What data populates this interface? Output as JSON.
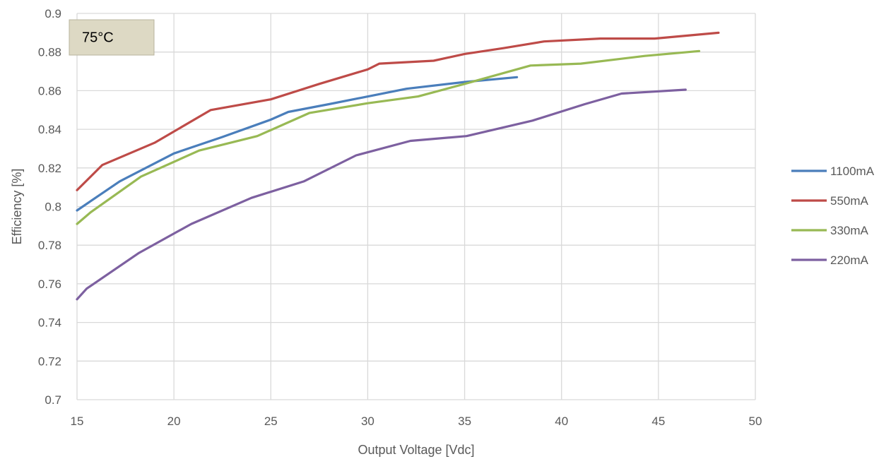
{
  "chart_data": {
    "type": "line",
    "title": "",
    "xlabel": "Output Voltage [Vdc]",
    "ylabel": "Efficiency [%]",
    "xlim": [
      15,
      50
    ],
    "ylim": [
      0.7,
      0.9
    ],
    "xticks": [
      15,
      20,
      25,
      30,
      35,
      40,
      45,
      50
    ],
    "yticks": [
      0.7,
      0.72,
      0.74,
      0.76,
      0.78,
      0.8,
      0.82,
      0.84,
      0.86,
      0.88,
      0.9
    ],
    "ytick_labels": [
      "0.7",
      "0.72",
      "0.74",
      "0.76",
      "0.78",
      "0.8",
      "0.82",
      "0.84",
      "0.86",
      "0.88",
      "0.9"
    ],
    "grid": true,
    "legend_position": "right",
    "annotation": "75°C",
    "series": [
      {
        "name": "1100mA",
        "color": "#4a7ebb",
        "x": [
          15,
          17.2,
          20,
          22.5,
          25,
          25.9,
          28,
          30.5,
          32,
          35,
          37.7
        ],
        "y": [
          0.798,
          0.813,
          0.8275,
          0.836,
          0.845,
          0.849,
          0.853,
          0.858,
          0.861,
          0.8645,
          0.867
        ]
      },
      {
        "name": "550mA",
        "color": "#be4b48",
        "x": [
          15,
          16.3,
          19,
          21.9,
          25,
          27.5,
          30,
          30.6,
          33.4,
          35,
          37,
          39.1,
          42,
          44.8,
          48.1
        ],
        "y": [
          0.8085,
          0.8215,
          0.833,
          0.85,
          0.8555,
          0.8635,
          0.871,
          0.874,
          0.8755,
          0.879,
          0.882,
          0.8855,
          0.887,
          0.887,
          0.89
        ]
      },
      {
        "name": "330mA",
        "color": "#98b954",
        "x": [
          15,
          15.7,
          18.3,
          21.3,
          24.3,
          27,
          30,
          32.6,
          35,
          38.4,
          41,
          44.3,
          47.1
        ],
        "y": [
          0.791,
          0.797,
          0.8155,
          0.829,
          0.8365,
          0.8485,
          0.8535,
          0.857,
          0.8635,
          0.873,
          0.874,
          0.878,
          0.8805
        ]
      },
      {
        "name": "220mA",
        "color": "#7d60a0",
        "x": [
          15,
          15.5,
          18.2,
          20.9,
          24,
          26.7,
          29.4,
          32.2,
          35.1,
          38.5,
          41.2,
          43.1,
          46.4
        ],
        "y": [
          0.752,
          0.7575,
          0.776,
          0.791,
          0.8045,
          0.813,
          0.8265,
          0.834,
          0.8365,
          0.8445,
          0.853,
          0.8585,
          0.8605
        ]
      }
    ]
  }
}
